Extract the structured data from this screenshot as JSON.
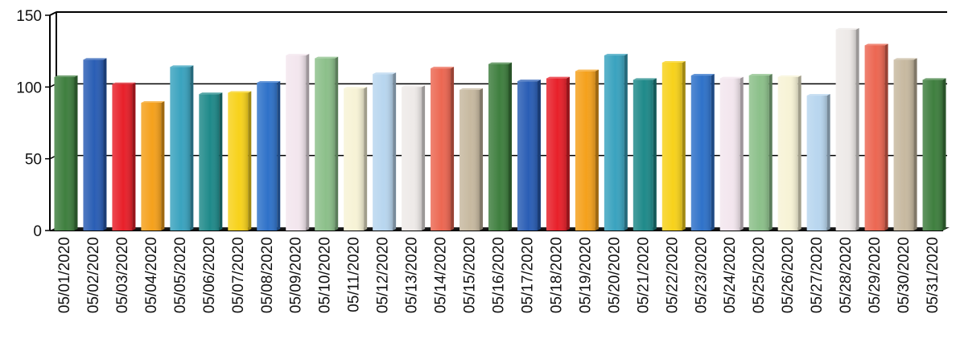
{
  "chart_data": {
    "type": "bar",
    "title": "",
    "xlabel": "",
    "ylabel": "",
    "ylim": [
      0,
      150
    ],
    "yticks": [
      "0",
      "50",
      "100",
      "150"
    ],
    "grid": true,
    "legend": "none",
    "categories": [
      "05/01/2020",
      "05/02/2020",
      "05/03/2020",
      "05/04/2020",
      "05/05/2020",
      "05/06/2020",
      "05/07/2020",
      "05/08/2020",
      "05/09/2020",
      "05/10/2020",
      "05/11/2020",
      "05/12/2020",
      "05/13/2020",
      "05/14/2020",
      "05/15/2020",
      "05/16/2020",
      "05/17/2020",
      "05/18/2020",
      "05/19/2020",
      "05/20/2020",
      "05/21/2020",
      "05/22/2020",
      "05/23/2020",
      "05/24/2020",
      "05/25/2020",
      "05/26/2020",
      "05/27/2020",
      "05/28/2020",
      "05/29/2020",
      "05/30/2020",
      "05/31/2020"
    ],
    "values": [
      107,
      119,
      102,
      89,
      114,
      95,
      96,
      103,
      122,
      120,
      99,
      109,
      100,
      113,
      98,
      116,
      104,
      106,
      111,
      122,
      105,
      117,
      108,
      106,
      108,
      107,
      94,
      140,
      129,
      119,
      105
    ],
    "colors": [
      "#3f7f3f",
      "#2a5eb5",
      "#e8202a",
      "#f5a11c",
      "#3aa3bf",
      "#1f8a8a",
      "#f7d21b",
      "#2f72c9",
      "#f3e6ee",
      "#8cc08a",
      "#f7f3d6",
      "#b8d6ef",
      "#eeeae8",
      "#ec6752",
      "#c7b9a0",
      "#3f7f3f",
      "#2a5eb5",
      "#e8202a",
      "#f5a11c",
      "#3aa3bf",
      "#1f8a8a",
      "#f7d21b",
      "#2f72c9",
      "#f3e6ee",
      "#8cc08a",
      "#f7f3d6",
      "#b8d6ef",
      "#eeeae8",
      "#ec6752",
      "#c7b9a0",
      "#3f7f3f"
    ]
  }
}
